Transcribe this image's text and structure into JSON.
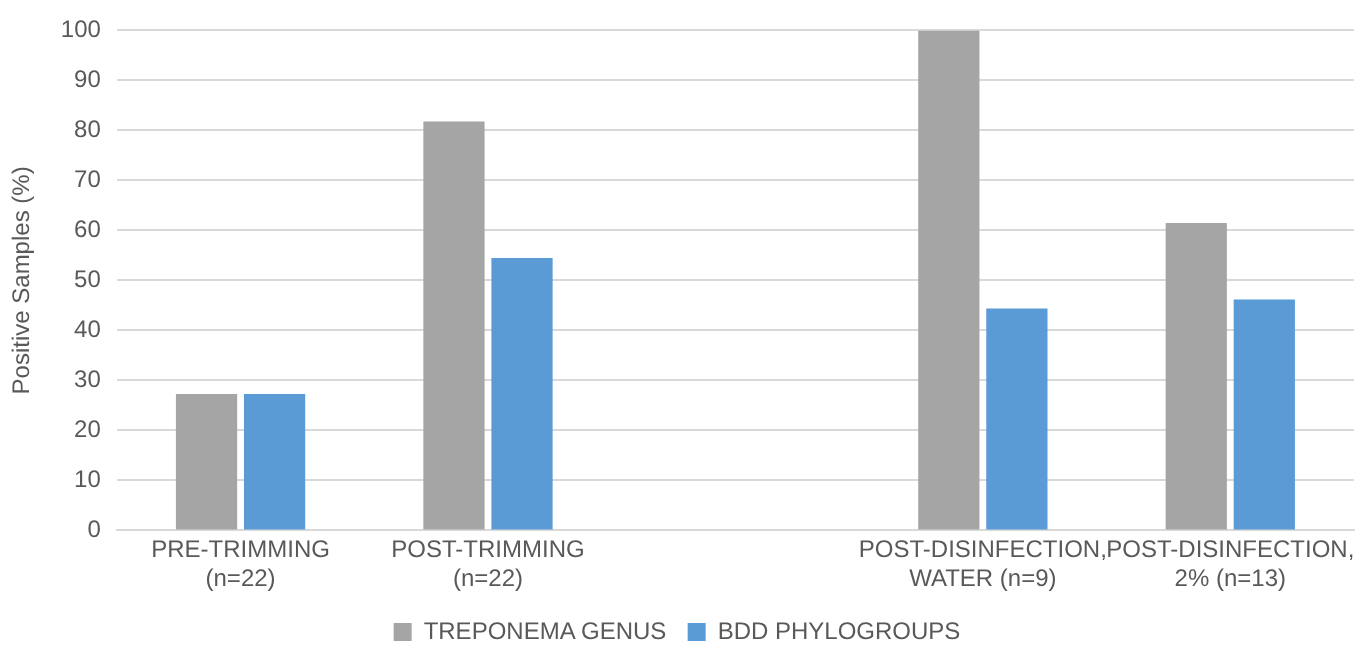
{
  "chart_data": {
    "type": "bar",
    "ylabel": "Positive Samples (%)",
    "categories": [
      "PRE-TRIMMING (n=22)",
      "POST-TRIMMING (n=22)",
      null,
      "POST-DISINFECTION, WATER (n=9)",
      "POST-DISINFECTION, 2% (n=13)"
    ],
    "series": [
      {
        "name": "TREPONEMA GENUS",
        "color": "#a5a5a5",
        "values": [
          27.3,
          81.8,
          null,
          100,
          61.5
        ]
      },
      {
        "name": "BDD PHYLOGROUPS",
        "color": "#5b9bd5",
        "values": [
          27.3,
          54.5,
          null,
          44.4,
          46.2
        ]
      }
    ],
    "ylim": [
      0,
      100
    ],
    "yticks": [
      0,
      10,
      20,
      30,
      40,
      50,
      60,
      70,
      80,
      90,
      100
    ],
    "grid": "y",
    "legend": "bottom"
  }
}
